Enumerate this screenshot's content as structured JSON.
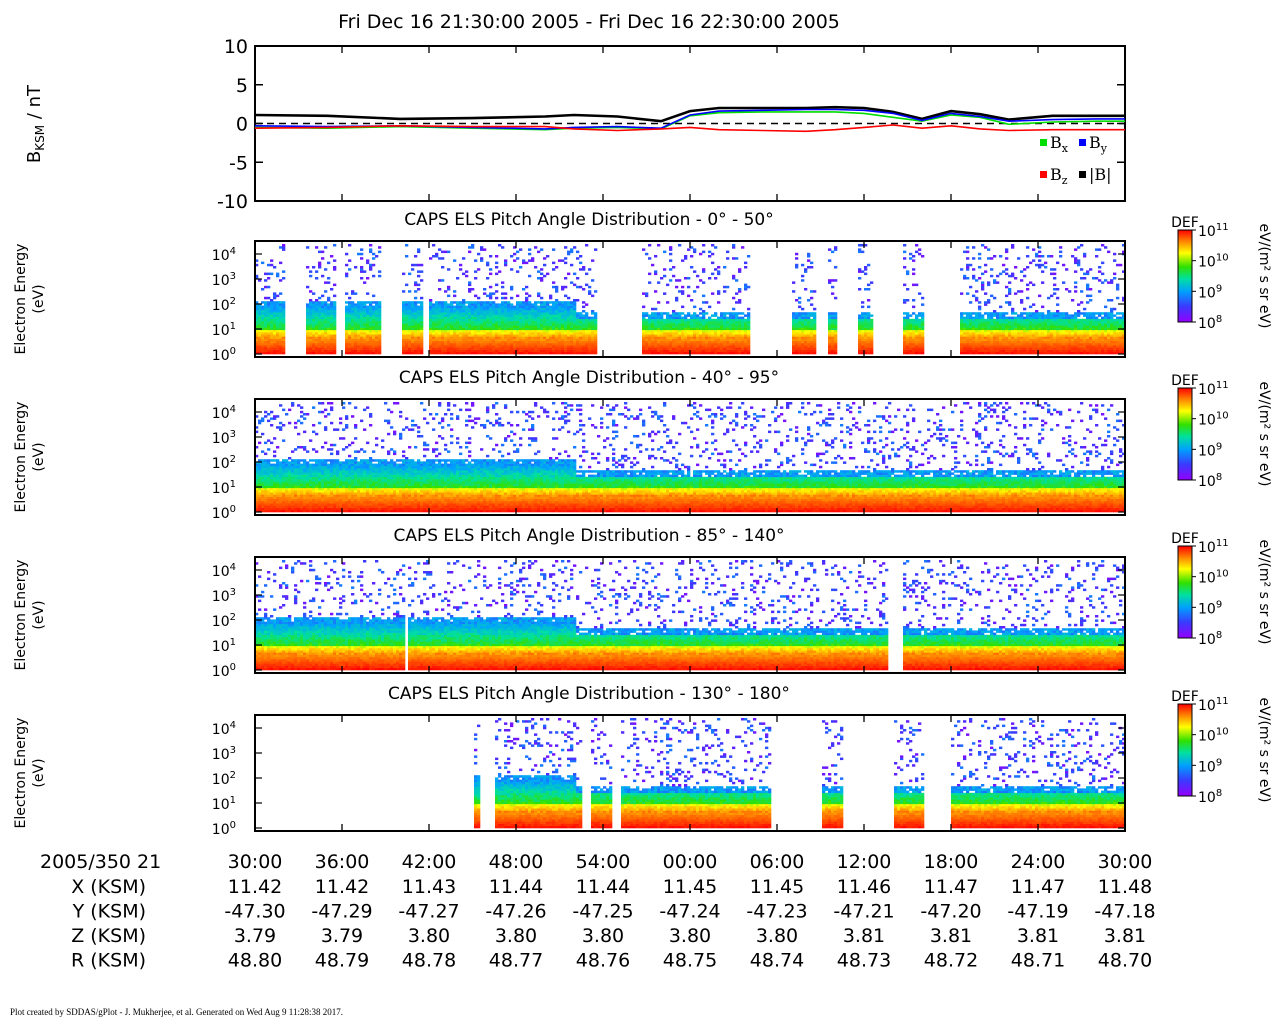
{
  "title": "Fri Dec 16 21:30:00 2005 - Fri Dec 16 22:30:00 2005",
  "footer": "Plot created by SDDAS/gPlot - J. Mukherjee, et al.  Generated on Wed Aug 9 11:28:38 2017.",
  "colors": {
    "bx": "#00dd00",
    "by": "#0000ff",
    "bz": "#ff0000",
    "bmag": "#000000"
  },
  "chart_data": [
    {
      "type": "line",
      "ylabel_main": "B",
      "ylabel_sub": "KSM",
      "ylabel_unit": " / nT",
      "ylim": [
        -10,
        10
      ],
      "yticks": [
        10,
        5,
        0,
        -5,
        -10
      ],
      "ytick_labels": [
        "10",
        "5",
        "0",
        "-5",
        "-10"
      ],
      "x_minutes": [
        0,
        5,
        10,
        15,
        20,
        22,
        25,
        28,
        30,
        32,
        35,
        38,
        40,
        42,
        44,
        46,
        48,
        50,
        52,
        55,
        58,
        60
      ],
      "series": [
        {
          "key": "bmag",
          "label_main": "|B|",
          "label_sub": "",
          "values": [
            1.1,
            1.0,
            0.6,
            0.7,
            0.9,
            1.1,
            0.9,
            0.3,
            1.6,
            2.0,
            2.0,
            2.0,
            2.1,
            2.0,
            1.5,
            0.6,
            1.6,
            1.2,
            0.5,
            1.0,
            1.0,
            1.0
          ]
        },
        {
          "key": "bx",
          "label_main": "B",
          "label_sub": "x",
          "values": [
            -0.5,
            -0.6,
            -0.4,
            -0.6,
            -0.8,
            -0.6,
            -0.5,
            -0.7,
            1.0,
            1.4,
            1.5,
            1.5,
            1.5,
            1.3,
            0.8,
            0.3,
            1.1,
            0.8,
            -0.1,
            0.2,
            0.3,
            0.3
          ]
        },
        {
          "key": "by",
          "label_main": "B",
          "label_sub": "y",
          "values": [
            -0.3,
            -0.4,
            -0.3,
            -0.5,
            -0.7,
            -0.5,
            -0.4,
            -0.6,
            1.1,
            1.6,
            1.7,
            1.8,
            1.8,
            1.7,
            1.3,
            0.4,
            1.3,
            0.9,
            0.3,
            0.5,
            0.6,
            0.6
          ]
        },
        {
          "key": "bz",
          "label_main": "B",
          "label_sub": "z",
          "values": [
            -0.6,
            -0.5,
            -0.3,
            -0.4,
            -0.4,
            -0.7,
            -0.9,
            -0.7,
            -0.5,
            -0.8,
            -0.9,
            -1.0,
            -0.8,
            -0.5,
            -0.2,
            -0.6,
            -0.3,
            -0.7,
            -0.9,
            -0.8,
            -0.8,
            -0.8
          ]
        }
      ]
    },
    {
      "type": "heatmap",
      "title": "CAPS ELS Pitch Angle Distribution - 0° - 50°",
      "ylabel": "Electron Energy",
      "yunit": "(eV)",
      "ylog_range": [
        0,
        4.4
      ],
      "yticks_exp": [
        0,
        1,
        2,
        3,
        4
      ],
      "colorbar": {
        "label": "DEF",
        "unit": "eV/(m² s sr eV)",
        "range_exp": [
          8,
          11
        ]
      },
      "gaps_minutes": [
        [
          2.0,
          3.5
        ],
        [
          5.5,
          6.2
        ],
        [
          8.5,
          10.0
        ],
        [
          11.5,
          12.0
        ],
        [
          23.5,
          26.5
        ],
        [
          34.0,
          37.0
        ],
        [
          38.5,
          39.5
        ],
        [
          40.0,
          41.5
        ],
        [
          42.5,
          44.5
        ],
        [
          46.0,
          48.5
        ]
      ]
    },
    {
      "type": "heatmap",
      "title": "CAPS ELS Pitch Angle Distribution - 40° - 95°",
      "ylabel": "Electron Energy",
      "yunit": "(eV)",
      "ylog_range": [
        0,
        4.4
      ],
      "yticks_exp": [
        0,
        1,
        2,
        3,
        4
      ],
      "colorbar": {
        "label": "DEF",
        "unit": "eV/(m² s sr eV)",
        "range_exp": [
          8,
          11
        ]
      },
      "gaps_minutes": []
    },
    {
      "type": "heatmap",
      "title": "CAPS ELS Pitch Angle Distribution - 85° - 140°",
      "ylabel": "Electron Energy",
      "yunit": "(eV)",
      "ylog_range": [
        0,
        4.4
      ],
      "yticks_exp": [
        0,
        1,
        2,
        3,
        4
      ],
      "colorbar": {
        "label": "DEF",
        "unit": "eV/(m² s sr eV)",
        "range_exp": [
          8,
          11
        ]
      },
      "gaps_minutes": [
        [
          10.2,
          10.4
        ],
        [
          43.5,
          44.5
        ]
      ]
    },
    {
      "type": "heatmap",
      "title": "CAPS ELS Pitch Angle Distribution - 130° - 180°",
      "ylabel": "Electron Energy",
      "yunit": "(eV)",
      "ylog_range": [
        0,
        4.4
      ],
      "yticks_exp": [
        0,
        1,
        2,
        3,
        4
      ],
      "colorbar": {
        "label": "DEF",
        "unit": "eV/(m² s sr eV)",
        "range_exp": [
          8,
          11
        ]
      },
      "gaps_minutes": [
        [
          0,
          15.0
        ],
        [
          15.5,
          16.5
        ],
        [
          22.5,
          23.0
        ],
        [
          24.5,
          25.2
        ],
        [
          35.5,
          39.0
        ],
        [
          40.5,
          44.0
        ],
        [
          46.0,
          48.0
        ]
      ]
    }
  ],
  "x_axis": {
    "date_label": "2005/350 21",
    "ticks": [
      "30:00",
      "36:00",
      "42:00",
      "48:00",
      "54:00",
      "00:00",
      "06:00",
      "12:00",
      "18:00",
      "24:00",
      "30:00"
    ],
    "rows": [
      {
        "label": "X (KSM)",
        "values": [
          "11.42",
          "11.42",
          "11.43",
          "11.44",
          "11.44",
          "11.45",
          "11.45",
          "11.46",
          "11.47",
          "11.47",
          "11.48"
        ]
      },
      {
        "label": "Y (KSM)",
        "values": [
          "-47.30",
          "-47.29",
          "-47.27",
          "-47.26",
          "-47.25",
          "-47.24",
          "-47.23",
          "-47.21",
          "-47.20",
          "-47.19",
          "-47.18"
        ]
      },
      {
        "label": "Z (KSM)",
        "values": [
          "3.79",
          "3.79",
          "3.80",
          "3.80",
          "3.80",
          "3.80",
          "3.80",
          "3.81",
          "3.81",
          "3.81",
          "3.81"
        ]
      },
      {
        "label": "R (KSM)",
        "values": [
          "48.80",
          "48.79",
          "48.78",
          "48.77",
          "48.76",
          "48.75",
          "48.74",
          "48.73",
          "48.72",
          "48.71",
          "48.70"
        ]
      }
    ]
  }
}
